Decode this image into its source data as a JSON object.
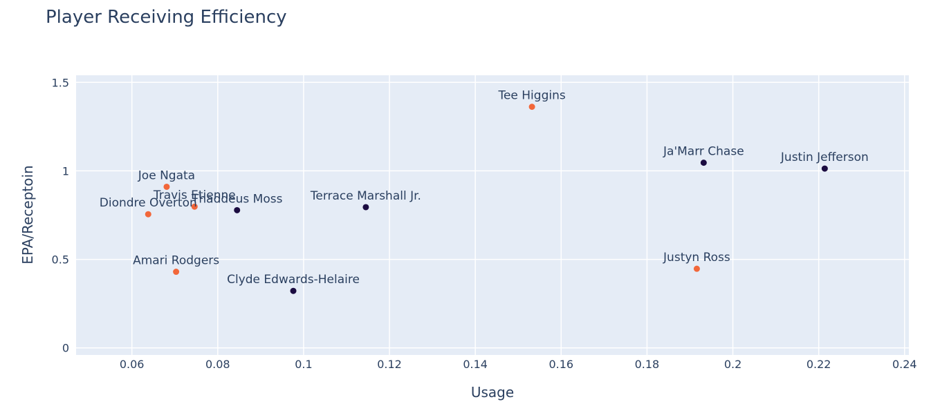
{
  "chart_data": {
    "type": "scatter",
    "title": "Player Receiving Efficiency",
    "xlabel": "Usage",
    "ylabel": "EPA/Receptoin",
    "xlim": [
      0.047,
      0.241
    ],
    "ylim": [
      -0.04,
      1.54
    ],
    "x_ticks": [
      0.06,
      0.08,
      0.1,
      0.12,
      0.14,
      0.16,
      0.18,
      0.2,
      0.22,
      0.24
    ],
    "x_tick_labels": [
      "0.06",
      "0.08",
      "0.1",
      "0.12",
      "0.14",
      "0.16",
      "0.18",
      "0.2",
      "0.22",
      "0.24"
    ],
    "y_ticks": [
      0,
      0.5,
      1,
      1.5
    ],
    "y_tick_labels": [
      "0",
      "0.5",
      "1",
      "1.5"
    ],
    "grid": true,
    "legend": "none",
    "colors": {
      "background": "#e5ecf6",
      "grid": "#ffffff",
      "dark": "#1b0c41",
      "orange": "#f2673a"
    },
    "points": [
      {
        "label": "Tee Higgins",
        "x": 0.1532,
        "y": 1.362,
        "color": "orange"
      },
      {
        "label": "Ja'Marr Chase",
        "x": 0.1932,
        "y": 1.046,
        "color": "dark"
      },
      {
        "label": "Justin Jefferson",
        "x": 0.2214,
        "y": 1.013,
        "color": "dark"
      },
      {
        "label": "Joe Ngata",
        "x": 0.0681,
        "y": 0.91,
        "color": "orange"
      },
      {
        "label": "Travis Etienne",
        "x": 0.0746,
        "y": 0.798,
        "color": "orange"
      },
      {
        "label": "Thaddeus Moss",
        "x": 0.0845,
        "y": 0.778,
        "color": "dark"
      },
      {
        "label": "Diondre Overton",
        "x": 0.0638,
        "y": 0.755,
        "color": "orange"
      },
      {
        "label": "Terrace Marshall Jr.",
        "x": 0.1145,
        "y": 0.795,
        "color": "dark"
      },
      {
        "label": "Amari Rodgers",
        "x": 0.0703,
        "y": 0.43,
        "color": "orange"
      },
      {
        "label": "Justyn Ross",
        "x": 0.1916,
        "y": 0.447,
        "color": "orange"
      },
      {
        "label": "Clyde Edwards-Helaire",
        "x": 0.0976,
        "y": 0.322,
        "color": "dark"
      }
    ]
  }
}
